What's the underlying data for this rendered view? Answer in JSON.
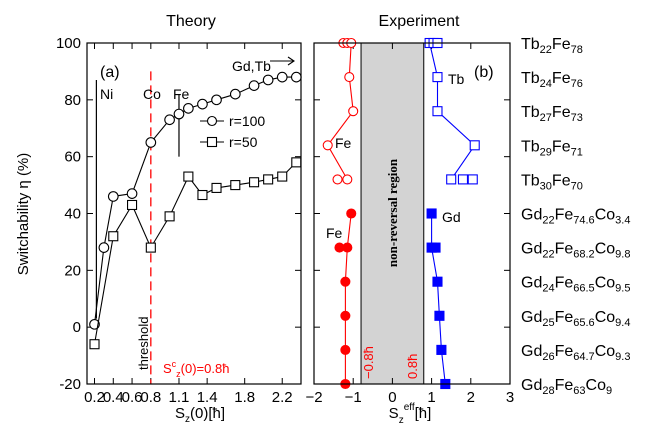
{
  "chart_data": [
    {
      "type": "line",
      "panel": "(a)",
      "title": "Theory",
      "xlabel": "S_z(0)[ħ]",
      "ylabel": "Switchability η (%)",
      "xlim": [
        0.12,
        2.4
      ],
      "ylim": [
        -20,
        100
      ],
      "xticks": [
        0.2,
        0.4,
        0.6,
        0.8,
        1.1,
        1.4,
        1.8,
        2.2
      ],
      "xtick_labels": [
        "0.2",
        "0.4",
        "0.6",
        "0.8",
        "1.1",
        "1.4",
        "1.8",
        "2.2"
      ],
      "yticks": [
        -20,
        0,
        20,
        40,
        60,
        80,
        100
      ],
      "series": [
        {
          "name": "r=100",
          "marker": "open-circle",
          "x": [
            0.2,
            0.3,
            0.4,
            0.6,
            0.8,
            1.0,
            1.1,
            1.2,
            1.35,
            1.5,
            1.7,
            1.9,
            2.05,
            2.2,
            2.35
          ],
          "y": [
            1,
            28,
            46,
            47,
            65,
            73,
            75,
            77,
            78.5,
            80,
            82,
            85,
            87,
            88,
            88
          ]
        },
        {
          "name": "r=50",
          "marker": "open-square",
          "x": [
            0.2,
            0.4,
            0.6,
            0.8,
            1.0,
            1.2,
            1.35,
            1.5,
            1.7,
            1.9,
            2.05,
            2.2,
            2.35
          ],
          "y": [
            -6,
            32,
            43,
            28,
            39,
            53,
            46.5,
            49,
            50,
            51,
            52,
            53,
            58
          ]
        }
      ],
      "annotations": {
        "ni": "Ni",
        "co": "Co",
        "fe": "Fe",
        "gdtb": "Gd,Tb",
        "threshold": "threshold",
        "threshold_value": "S^c_z(0)=0.8ħ"
      },
      "element_markers_x": {
        "ni": 0.22,
        "co": 0.8,
        "fe": 1.1
      },
      "threshold_x": 0.8,
      "legend_position": "center-right"
    },
    {
      "type": "scatter",
      "panel": "(b)",
      "title": "Experiment",
      "xlabel": "S_z^eff[ħ]",
      "xlim": [
        -2,
        3
      ],
      "xticks": [
        -2,
        -1,
        0,
        1,
        2,
        3
      ],
      "shaded_region": {
        "from": -0.8,
        "to": 0.8,
        "label": "non-reversal region",
        "left_label": "−0.8ħ",
        "right_label": "0.8ħ"
      },
      "annotations": {
        "fe_top": "Fe",
        "tb": "Tb",
        "fe_bottom": "Fe",
        "gd": "Gd"
      },
      "samples": [
        {
          "base": "Tb",
          "base_sub": "22",
          "rest": "Fe",
          "rest_sub": "78",
          "fe_vals": [
            -1.25,
            -1.15,
            -1.05
          ],
          "re_vals": [
            0.95,
            1.05,
            1.15
          ]
        },
        {
          "base": "Tb",
          "base_sub": "24",
          "rest": "Fe",
          "rest_sub": "76",
          "fe_vals": [
            -1.1
          ],
          "re_vals": [
            1.15
          ]
        },
        {
          "base": "Tb",
          "base_sub": "27",
          "rest": "Fe",
          "rest_sub": "73",
          "fe_vals": [
            -1.0
          ],
          "re_vals": [
            1.15
          ]
        },
        {
          "base": "Tb",
          "base_sub": "29",
          "rest": "Fe",
          "rest_sub": "71",
          "fe_vals": [
            -1.65
          ],
          "re_vals": [
            2.1
          ]
        },
        {
          "base": "Tb",
          "base_sub": "30",
          "rest": "Fe",
          "rest_sub": "70",
          "fe_vals": [
            -1.4,
            -1.15
          ],
          "re_vals": [
            1.5,
            1.8,
            2.05
          ]
        },
        {
          "base": "Gd",
          "base_sub": "22",
          "rest": "Fe",
          "rest_sub": "74.6",
          "rest2": "Co",
          "rest2_sub": "3.4",
          "fe_vals": [
            -1.05
          ],
          "re_vals": [
            1.0
          ]
        },
        {
          "base": "Gd",
          "base_sub": "22",
          "rest": "Fe",
          "rest_sub": "68.2",
          "rest2": "Co",
          "rest2_sub": "9.8",
          "fe_vals": [
            -1.35,
            -1.15
          ],
          "re_vals": [
            1.0,
            1.1
          ]
        },
        {
          "base": "Gd",
          "base_sub": "24",
          "rest": "Fe",
          "rest_sub": "66.5",
          "rest2": "Co",
          "rest2_sub": "9.5",
          "fe_vals": [
            -1.2
          ],
          "re_vals": [
            1.15
          ]
        },
        {
          "base": "Gd",
          "base_sub": "25",
          "rest": "Fe",
          "rest_sub": "65.6",
          "rest2": "Co",
          "rest2_sub": "9.4",
          "fe_vals": [
            -1.2
          ],
          "re_vals": [
            1.2
          ]
        },
        {
          "base": "Gd",
          "base_sub": "26",
          "rest": "Fe",
          "rest_sub": "64.7",
          "rest2": "Co",
          "rest2_sub": "9.3",
          "fe_vals": [
            -1.2
          ],
          "re_vals": [
            1.25
          ]
        },
        {
          "base": "Gd",
          "base_sub": "28",
          "rest": "Fe",
          "rest_sub": "63",
          "rest2": "Co",
          "rest2_sub": "9",
          "fe_vals": [
            -1.2
          ],
          "re_vals": [
            1.35
          ]
        }
      ],
      "colors": {
        "fe": "#ff0000",
        "tb": "#0000ff",
        "gd": "#0000ff",
        "shade": "#d3d3d3",
        "threshold": "#ff0000"
      }
    }
  ]
}
